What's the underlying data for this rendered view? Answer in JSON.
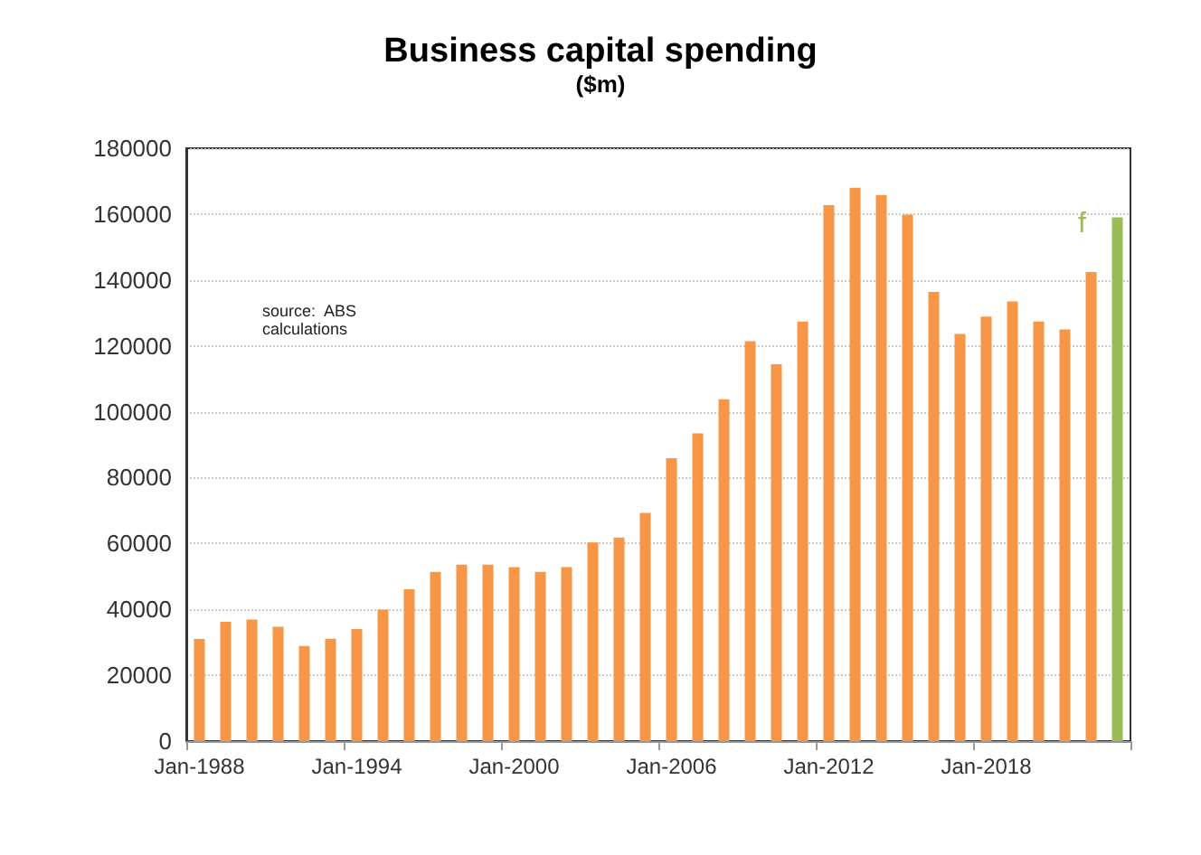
{
  "chart_data": {
    "type": "bar",
    "title": "Business capital spending",
    "subtitle": "($m)",
    "categories": [
      "Jan-1988",
      null,
      null,
      null,
      null,
      null,
      "Jan-1994",
      null,
      null,
      null,
      null,
      null,
      "Jan-2000",
      null,
      null,
      null,
      null,
      null,
      "Jan-2006",
      null,
      null,
      null,
      null,
      null,
      "Jan-2012",
      null,
      null,
      null,
      null,
      null,
      "Jan-2018",
      null,
      null,
      null,
      null,
      null
    ],
    "values": [
      31000,
      36200,
      36900,
      34700,
      28900,
      31100,
      34000,
      39900,
      46100,
      51400,
      53600,
      53600,
      52800,
      51400,
      52800,
      60300,
      61800,
      69300,
      85900,
      93400,
      103800,
      121400,
      114400,
      127400,
      162700,
      168000,
      165800,
      159800,
      136400,
      123600,
      128900,
      133500,
      127400,
      125000,
      142400,
      159000
    ],
    "colors": [
      "#f79646",
      "#f79646",
      "#f79646",
      "#f79646",
      "#f79646",
      "#f79646",
      "#f79646",
      "#f79646",
      "#f79646",
      "#f79646",
      "#f79646",
      "#f79646",
      "#f79646",
      "#f79646",
      "#f79646",
      "#f79646",
      "#f79646",
      "#f79646",
      "#f79646",
      "#f79646",
      "#f79646",
      "#f79646",
      "#f79646",
      "#f79646",
      "#f79646",
      "#f79646",
      "#f79646",
      "#f79646",
      "#f79646",
      "#f79646",
      "#f79646",
      "#f79646",
      "#f79646",
      "#f79646",
      "#f79646",
      "#9bbb59"
    ],
    "ylim": [
      0,
      180000
    ],
    "yticks": [
      0,
      20000,
      40000,
      60000,
      80000,
      100000,
      120000,
      140000,
      160000,
      180000
    ],
    "grid": "y",
    "annotations": [
      "source:  ABS calculations",
      "f"
    ]
  }
}
